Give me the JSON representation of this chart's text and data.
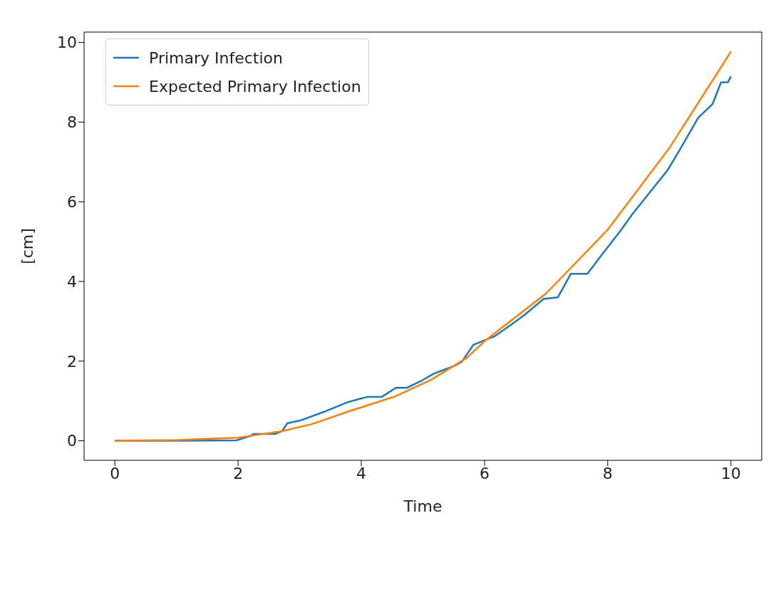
{
  "chart_data": {
    "type": "line",
    "xlabel": "Time",
    "ylabel": "[cm]",
    "xlim": [
      -0.5,
      10.5
    ],
    "ylim": [
      -0.49,
      10.26
    ],
    "xticks": [
      0,
      2,
      4,
      6,
      8,
      10
    ],
    "yticks": [
      0,
      2,
      4,
      6,
      8,
      10
    ],
    "legend": "top left",
    "marker": "none",
    "line_style": "solid",
    "series": [
      {
        "name": "Primary Infection",
        "color": "#1f77b4",
        "x": [
          0,
          1,
          1.97,
          2.2,
          2.25,
          2.6,
          2.71,
          2.8,
          3.01,
          3.4,
          3.78,
          4.09,
          4.33,
          4.56,
          4.74,
          4.97,
          5.17,
          5.51,
          5.63,
          5.82,
          6.17,
          6.42,
          6.64,
          6.96,
          7.19,
          7.4,
          7.67,
          7.9,
          8.21,
          8.4,
          8.97,
          9.16,
          9.47,
          9.7,
          9.84,
          9.95,
          10
        ],
        "values": [
          0,
          0,
          0.01,
          0.12,
          0.17,
          0.17,
          0.24,
          0.44,
          0.51,
          0.73,
          0.97,
          1.1,
          1.1,
          1.33,
          1.33,
          1.5,
          1.68,
          1.88,
          1.98,
          2.41,
          2.63,
          2.9,
          3.15,
          3.56,
          3.6,
          4.19,
          4.19,
          4.66,
          5.28,
          5.69,
          6.79,
          7.28,
          8.11,
          8.45,
          9.0,
          9.0,
          9.15
        ]
      },
      {
        "name": "Expected Primary Infection",
        "color": "#ff7f0e",
        "x": [
          0,
          1,
          2,
          2.71,
          3.2,
          3.78,
          4.56,
          5.13,
          5.71,
          6,
          7,
          8,
          9,
          10
        ],
        "values": [
          0,
          0.02,
          0.08,
          0.24,
          0.42,
          0.73,
          1.12,
          1.53,
          2.08,
          2.5,
          3.7,
          5.3,
          7.35,
          9.77
        ]
      }
    ]
  }
}
